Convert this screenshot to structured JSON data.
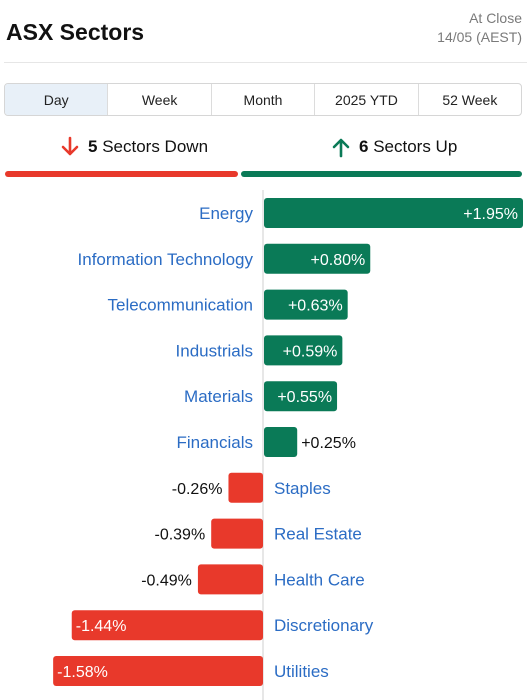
{
  "header": {
    "title": "ASX Sectors",
    "status_line1": "At Close",
    "status_line2": "14/05 (AEST)"
  },
  "tabs": [
    "Day",
    "Week",
    "Month",
    "2025 YTD",
    "52 Week"
  ],
  "active_tab": "Day",
  "summary": {
    "down_count": "5",
    "down_label": "Sectors Down",
    "up_count": "6",
    "up_label": "Sectors Up"
  },
  "colors": {
    "positive": "#0a7a57",
    "negative": "#e8392b",
    "label": "#2b6cc4"
  },
  "chart_data": {
    "type": "bar",
    "orientation": "horizontal-diverging",
    "categories": [
      "Energy",
      "Information Technology",
      "Telecommunication",
      "Industrials",
      "Materials",
      "Financials",
      "Staples",
      "Real Estate",
      "Health Care",
      "Discretionary",
      "Utilities"
    ],
    "values": [
      1.95,
      0.8,
      0.63,
      0.59,
      0.55,
      0.25,
      -0.26,
      -0.39,
      -0.49,
      -1.44,
      -1.58
    ],
    "value_labels": [
      "+1.95%",
      "+0.80%",
      "+0.63%",
      "+0.59%",
      "+0.55%",
      "+0.25%",
      "-0.26%",
      "-0.39%",
      "-0.49%",
      "-1.44%",
      "-1.58%"
    ],
    "unit": "%"
  }
}
